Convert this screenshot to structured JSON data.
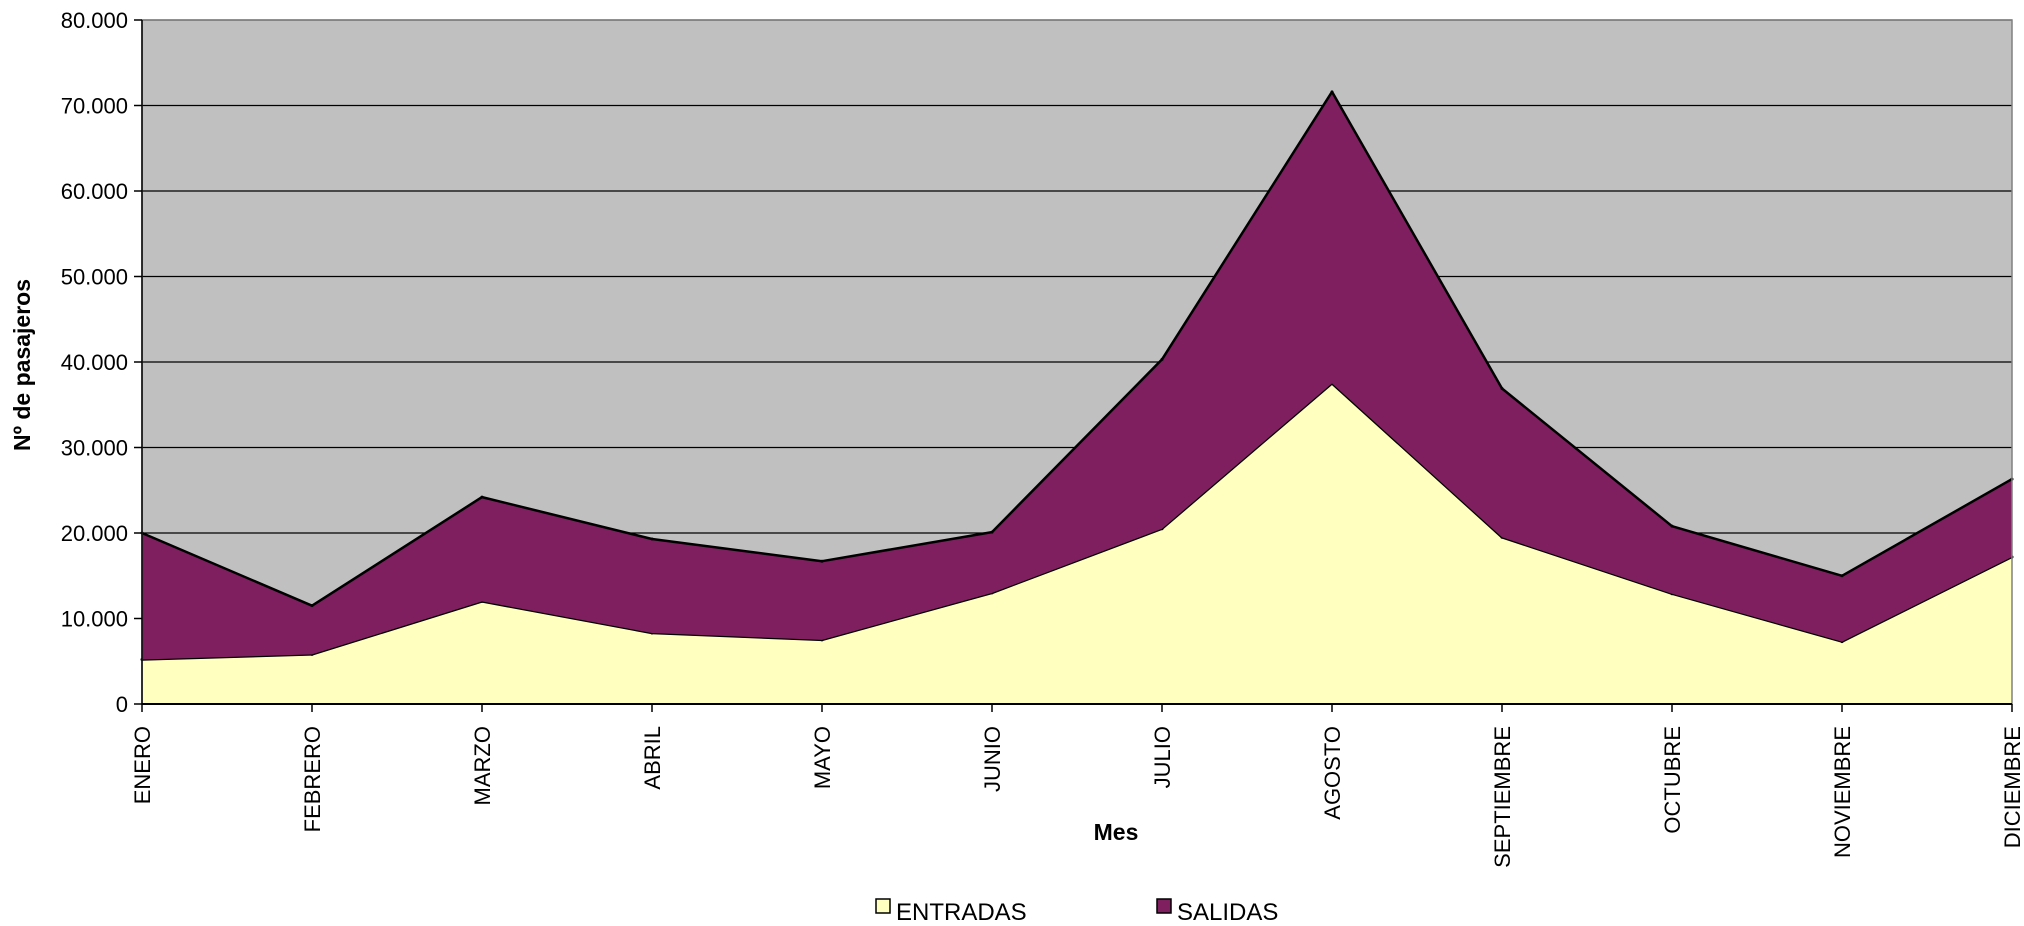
{
  "chart_data": {
    "type": "area",
    "stacked": true,
    "title": "",
    "xlabel": "Mes",
    "ylabel": "Nº de pasajeros",
    "categories": [
      "ENERO",
      "FEBRERO",
      "MARZO",
      "ABRIL",
      "MAYO",
      "JUNIO",
      "JULIO",
      "AGOSTO",
      "SEPTIEMBRE",
      "OCTUBRE",
      "NOVIEMBRE",
      "DICIEMBRE"
    ],
    "ylim": [
      0,
      80000
    ],
    "yticks": [
      "0",
      "10.000",
      "20.000",
      "30.000",
      "40.000",
      "50.000",
      "60.000",
      "70.000",
      "80.000"
    ],
    "grid": true,
    "legend_position": "bottom",
    "series": [
      {
        "name": "ENTRADAS",
        "color": "#FFFFC0",
        "values": [
          5200,
          5800,
          12000,
          8300,
          7500,
          13000,
          20500,
          37500,
          19500,
          12900,
          7300,
          17200
        ]
      },
      {
        "name": "SALIDAS",
        "color": "#7F1F5F",
        "values": [
          14800,
          5700,
          12200,
          11000,
          9200,
          7100,
          19800,
          34100,
          17400,
          7900,
          7700,
          9100
        ]
      }
    ],
    "background_color": "#C0C0C0"
  }
}
